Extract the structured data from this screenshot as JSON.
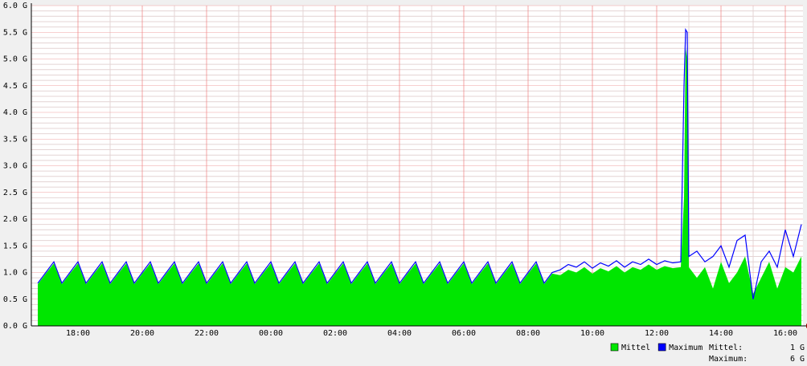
{
  "chart_data": {
    "type": "area",
    "x": [
      16.75,
      17,
      17.25,
      17.5,
      17.75,
      18,
      18.25,
      18.5,
      18.75,
      19,
      19.25,
      19.5,
      19.75,
      20,
      20.25,
      20.5,
      20.75,
      21,
      21.25,
      21.5,
      21.75,
      22,
      22.25,
      22.5,
      22.75,
      23,
      23.25,
      23.5,
      23.75,
      24,
      24.25,
      24.5,
      24.75,
      25,
      25.25,
      25.5,
      25.75,
      26,
      26.25,
      26.5,
      26.75,
      27,
      27.25,
      27.5,
      27.75,
      28,
      28.25,
      28.5,
      28.75,
      29,
      29.25,
      29.5,
      29.75,
      30,
      30.25,
      30.5,
      30.75,
      31,
      31.25,
      31.5,
      31.75,
      32,
      32.25,
      32.5,
      32.75,
      33,
      33.25,
      33.5,
      33.75,
      34,
      34.25,
      34.5,
      34.75,
      35,
      35.25,
      35.5,
      35.75,
      36,
      36.25,
      36.5,
      36.75,
      36.85,
      36.9,
      36.95,
      37,
      37.25,
      37.5,
      37.75,
      38,
      38.25,
      38.5,
      38.75,
      39,
      39.25,
      39.5,
      39.75,
      40,
      40.25,
      40.5
    ],
    "series": [
      {
        "name": "Mittel",
        "color": "#00e600",
        "values": [
          0.78,
          0.98,
          1.17,
          0.78,
          0.98,
          1.17,
          0.78,
          0.98,
          1.17,
          0.78,
          0.98,
          1.17,
          0.78,
          0.98,
          1.17,
          0.78,
          0.98,
          1.17,
          0.78,
          0.98,
          1.17,
          0.78,
          0.98,
          1.17,
          0.78,
          0.98,
          1.17,
          0.78,
          0.98,
          1.17,
          0.78,
          0.98,
          1.17,
          0.78,
          0.98,
          1.17,
          0.78,
          0.98,
          1.17,
          0.78,
          0.98,
          1.17,
          0.78,
          0.98,
          1.17,
          0.78,
          0.98,
          1.17,
          0.78,
          0.98,
          1.17,
          0.78,
          0.98,
          1.17,
          0.78,
          0.98,
          1.17,
          0.78,
          0.98,
          1.17,
          0.78,
          0.98,
          1.17,
          0.78,
          0.98,
          0.95,
          1.05,
          1.0,
          1.1,
          0.98,
          1.08,
          1.02,
          1.12,
          1.0,
          1.1,
          1.05,
          1.15,
          1.05,
          1.12,
          1.08,
          1.1,
          2.4,
          5.2,
          5.0,
          1.1,
          0.9,
          1.1,
          0.7,
          1.2,
          0.8,
          1.0,
          1.3,
          0.6,
          0.9,
          1.2,
          0.7,
          1.1,
          1.0,
          1.3
        ]
      },
      {
        "name": "Maximum",
        "color": "#0000ff",
        "values": [
          0.8,
          1.0,
          1.2,
          0.8,
          1.0,
          1.2,
          0.8,
          1.0,
          1.2,
          0.8,
          1.0,
          1.2,
          0.8,
          1.0,
          1.2,
          0.8,
          1.0,
          1.2,
          0.8,
          1.0,
          1.2,
          0.8,
          1.0,
          1.2,
          0.8,
          1.0,
          1.2,
          0.8,
          1.0,
          1.2,
          0.8,
          1.0,
          1.2,
          0.8,
          1.0,
          1.2,
          0.8,
          1.0,
          1.2,
          0.8,
          1.0,
          1.2,
          0.8,
          1.0,
          1.2,
          0.8,
          1.0,
          1.2,
          0.8,
          1.0,
          1.2,
          0.8,
          1.0,
          1.2,
          0.8,
          1.0,
          1.2,
          0.8,
          1.0,
          1.2,
          0.8,
          1.0,
          1.2,
          0.8,
          1.0,
          1.05,
          1.15,
          1.1,
          1.2,
          1.08,
          1.18,
          1.12,
          1.22,
          1.1,
          1.2,
          1.15,
          1.25,
          1.15,
          1.22,
          1.18,
          1.2,
          4.5,
          5.55,
          5.5,
          1.3,
          1.4,
          1.2,
          1.3,
          1.5,
          1.1,
          1.6,
          1.7,
          0.5,
          1.2,
          1.4,
          1.1,
          1.8,
          1.3,
          1.9
        ]
      }
    ],
    "xlim": [
      16.55,
      40.55
    ],
    "xticks": [
      {
        "value": 18,
        "label": "18:00"
      },
      {
        "value": 20,
        "label": "20:00"
      },
      {
        "value": 22,
        "label": "22:00"
      },
      {
        "value": 24,
        "label": "00:00"
      },
      {
        "value": 26,
        "label": "02:00"
      },
      {
        "value": 28,
        "label": "04:00"
      },
      {
        "value": 30,
        "label": "06:00"
      },
      {
        "value": 32,
        "label": "08:00"
      },
      {
        "value": 34,
        "label": "10:00"
      },
      {
        "value": 36,
        "label": "12:00"
      },
      {
        "value": 38,
        "label": "14:00"
      },
      {
        "value": 40,
        "label": "16:00"
      }
    ],
    "ylim": [
      0,
      6
    ],
    "yticks": [
      {
        "value": 0,
        "label": "0.0 G"
      },
      {
        "value": 0.5,
        "label": "0.5 G"
      },
      {
        "value": 1,
        "label": "1.0 G"
      },
      {
        "value": 1.5,
        "label": "1.5 G"
      },
      {
        "value": 2,
        "label": "2.0 G"
      },
      {
        "value": 2.5,
        "label": "2.5 G"
      },
      {
        "value": 3,
        "label": "3.0 G"
      },
      {
        "value": 3.5,
        "label": "3.5 G"
      },
      {
        "value": 4,
        "label": "4.0 G"
      },
      {
        "value": 4.5,
        "label": "4.5 G"
      },
      {
        "value": 5,
        "label": "5.0 G"
      },
      {
        "value": 5.5,
        "label": "5.5 G"
      },
      {
        "value": 6,
        "label": "6.0 G"
      }
    ],
    "grid": true,
    "legend_stats": [
      {
        "label": "Mittel:",
        "value": "1 G"
      },
      {
        "label": "Maximum:",
        "value": "6 G"
      }
    ]
  }
}
